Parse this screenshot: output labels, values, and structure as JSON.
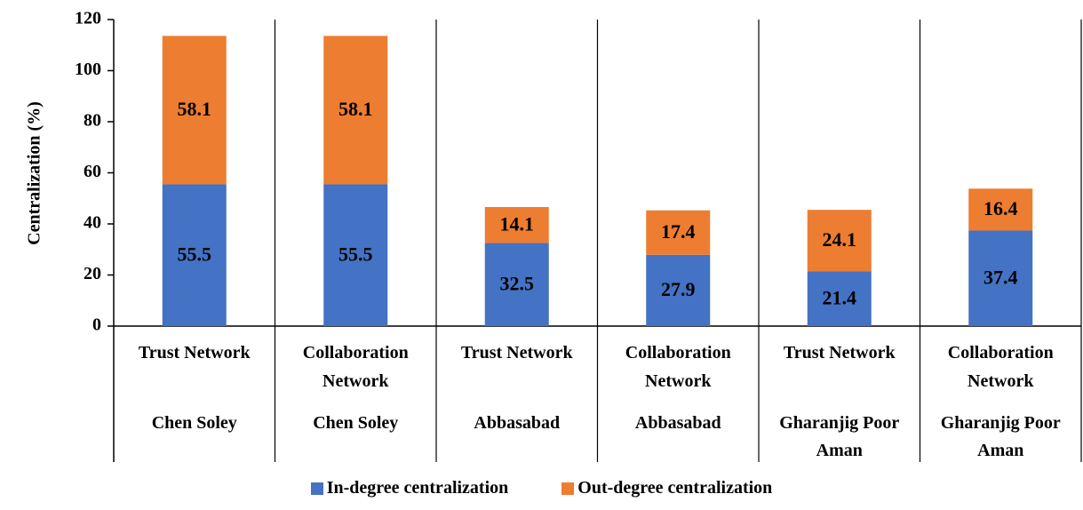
{
  "chart_data": {
    "type": "bar",
    "stacked": true,
    "y_label": "Centralization (%)",
    "categories": [
      "Trust Network",
      "Collaboration Network",
      "Trust Network",
      "Collaboration Network",
      "Trust Network",
      "Collaboration Network"
    ],
    "groups": [
      "Chen Soley",
      "Chen Soley",
      "Abbasabad",
      "Abbasabad",
      "Gharanjig Poor Aman",
      "Gharanjig Poor Aman"
    ],
    "series": [
      {
        "name": "In-degree centralization",
        "color": "#4472c4",
        "values": [
          55.5,
          55.5,
          32.5,
          27.9,
          21.4,
          37.4
        ]
      },
      {
        "name": "Out-degree centralization",
        "color": "#ed7d31",
        "values": [
          58.1,
          58.1,
          14.1,
          17.4,
          24.1,
          16.4
        ]
      }
    ],
    "ylim": [
      0,
      120
    ],
    "yticks": [
      0,
      20,
      40,
      60,
      80,
      100,
      120
    ],
    "legend": "bottom",
    "show_values": true
  }
}
